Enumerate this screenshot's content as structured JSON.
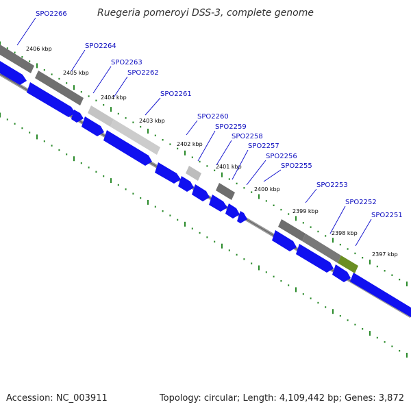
{
  "title": "Ruegeria pomeroyi DSS-3, complete genome",
  "footer": {
    "accession": "Accession: NC_003911",
    "summary": "Topology: circular; Length: 4,109,442 bp; Genes: 3,872"
  },
  "colors": {
    "gene_label": "#0b0bbf",
    "tick": "#2a8a2a",
    "cds": "#0000ff",
    "backbone": "#808080",
    "feature_dark": "#6e6e6e",
    "feature_light": "#c8c8c8",
    "feature_green": "#6b8e23"
  },
  "kbp_labels": [
    "2406 kbp",
    "2405 kbp",
    "2404 kbp",
    "2403 kbp",
    "2402 kbp",
    "2401 kbp",
    "2400 kbp",
    "2399 kbp",
    "2398 kbp",
    "2397 kbp"
  ],
  "genes": [
    "SPO2266",
    "SPO2264",
    "SPO2263",
    "SPO2262",
    "SPO2261",
    "SPO2260",
    "SPO2259",
    "SPO2258",
    "SPO2257",
    "SPO2256",
    "SPO2255",
    "SPO2253",
    "SPO2252",
    "SPO2251"
  ]
}
